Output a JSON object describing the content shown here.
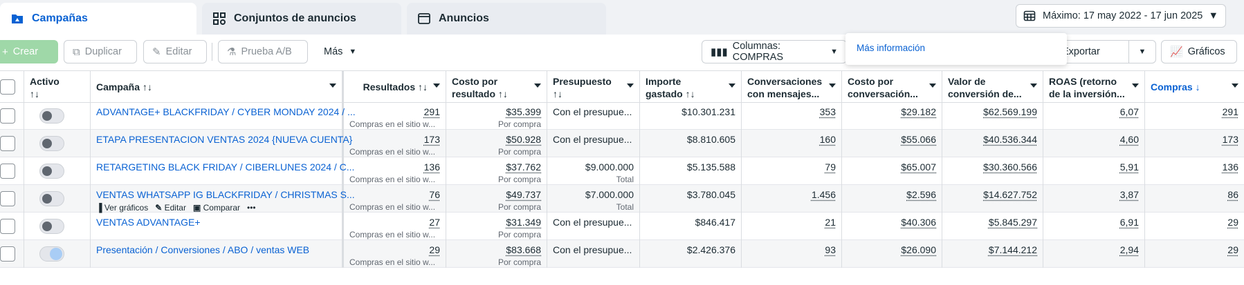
{
  "tabs": [
    {
      "label": "Campañas",
      "icon": "campaign-folder-icon"
    },
    {
      "label": "Conjuntos de anuncios",
      "icon": "grid-icon"
    },
    {
      "label": "Anuncios",
      "icon": "ad-window-icon"
    }
  ],
  "date_range": {
    "label": "Máximo: 17 may 2022 - 17 jun 2025"
  },
  "toolbar": {
    "create": "Crear",
    "duplicate": "Duplicar",
    "edit": "Editar",
    "ab_test": "Prueba A/B",
    "more": "Más",
    "columns": "Columnas: COMPRAS",
    "export": "Exportar",
    "charts": "Gráficos"
  },
  "popover": {
    "link": "Más información"
  },
  "headers": {
    "active": [
      "Activo",
      "↑↓"
    ],
    "campaign": "Campaña ↑↓",
    "results": "Resultados ↑↓",
    "cpr": [
      "Costo por",
      "resultado ↑↓"
    ],
    "budget": [
      "Presupuesto",
      "↑↓"
    ],
    "spent": [
      "Importe",
      "gastado ↑↓"
    ],
    "conv": [
      "Conversaciones",
      "con mensajes..."
    ],
    "cpc": [
      "Costo por",
      "conversación..."
    ],
    "value": [
      "Valor de",
      "conversión de..."
    ],
    "roas": [
      "ROAS (retorno",
      "de la inversión..."
    ],
    "purchases": "Compras ↓"
  },
  "row_actions": {
    "charts": "Ver gráficos",
    "edit": "Editar",
    "compare": "Comparar",
    "more": "•••"
  },
  "rows": [
    {
      "campaign": "ADVANTAGE+ BLACKFRIDAY / CYBER MONDAY 2024 / ...",
      "results": "291",
      "results_sub": "Compras en el sitio w...",
      "cpr": "$35.399",
      "cpr_sub": "Por compra",
      "budget": "Con el presupue...",
      "budget_sub": "",
      "spent": "$10.301.231",
      "conv": "353",
      "cpc": "$29.182",
      "value": "$62.569.199",
      "roas": "6,07",
      "purchases": "291"
    },
    {
      "campaign": "ETAPA PRESENTACION VENTAS 2024 {NUEVA CUENTA}",
      "results": "173",
      "results_sub": "Compras en el sitio w...",
      "cpr": "$50.928",
      "cpr_sub": "Por compra",
      "budget": "Con el presupue...",
      "budget_sub": "",
      "spent": "$8.810.605",
      "conv": "160",
      "cpc": "$55.066",
      "value": "$40.536.344",
      "roas": "4,60",
      "purchases": "173"
    },
    {
      "campaign": "RETARGETING BLACK FRIDAY / CIBERLUNES 2024 / C...",
      "results": "136",
      "results_sub": "Compras en el sitio w...",
      "cpr": "$37.762",
      "cpr_sub": "Por compra",
      "budget": "$9.000.000",
      "budget_sub": "Total",
      "spent": "$5.135.588",
      "conv": "79",
      "cpc": "$65.007",
      "value": "$30.360.566",
      "roas": "5,91",
      "purchases": "136"
    },
    {
      "campaign": "VENTAS WHATSAPP IG BLACKFRIDAY / CHRISTMAS S...",
      "results": "76",
      "results_sub": "Compras en el sitio w...",
      "cpr": "$49.737",
      "cpr_sub": "Por compra",
      "budget": "$7.000.000",
      "budget_sub": "Total",
      "spent": "$3.780.045",
      "conv": "1.456",
      "cpc": "$2.596",
      "value": "$14.627.752",
      "roas": "3,87",
      "purchases": "86"
    },
    {
      "campaign": "VENTAS ADVANTAGE+",
      "results": "27",
      "results_sub": "Compras en el sitio w...",
      "cpr": "$31.349",
      "cpr_sub": "Por compra",
      "budget": "Con el presupue...",
      "budget_sub": "",
      "spent": "$846.417",
      "conv": "21",
      "cpc": "$40.306",
      "value": "$5.845.297",
      "roas": "6,91",
      "purchases": "29"
    },
    {
      "campaign": "Presentación / Conversiones / ABO / ventas WEB",
      "results": "29",
      "results_sub": "Compras en el sitio w...",
      "cpr": "$83.668",
      "cpr_sub": "Por compra",
      "budget": "Con el presupue...",
      "budget_sub": "",
      "spent": "$2.426.376",
      "conv": "93",
      "cpc": "$26.090",
      "value": "$7.144.212",
      "roas": "2,94",
      "purchases": "29"
    }
  ],
  "colors": {
    "accent": "#0a62d3",
    "create_green": "#9fd8a8"
  }
}
